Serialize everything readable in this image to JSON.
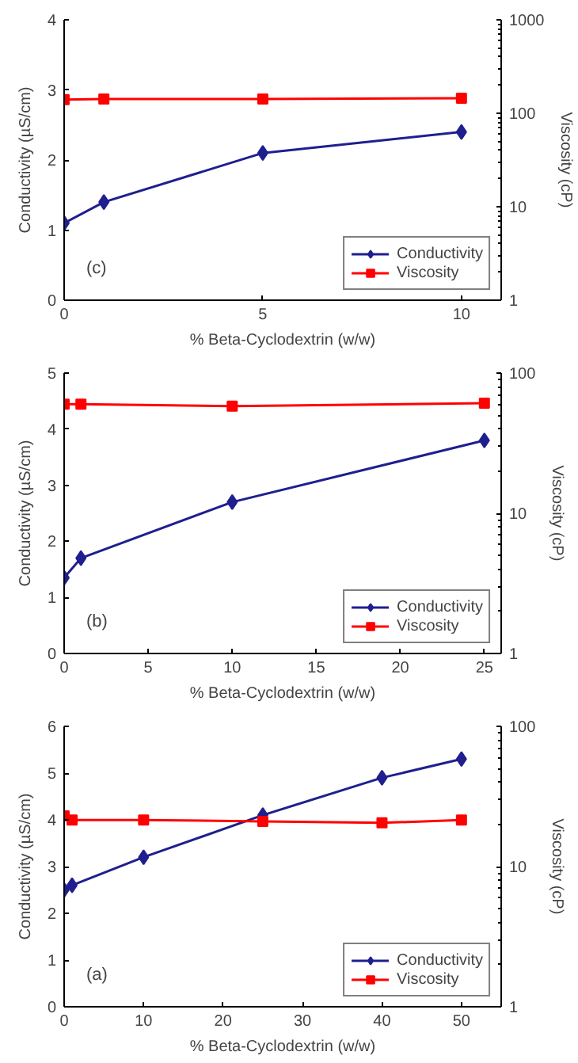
{
  "chart_data": [
    {
      "type": "line",
      "xlabel": "% Beta-Cyclodextrin (w/w)",
      "ylabel": "Conductivity (µS/cm)",
      "y2label": "Viscosity (cP)",
      "annotations": [
        "(c)"
      ],
      "x": [
        0,
        1,
        5,
        10
      ],
      "xlim": [
        0,
        11
      ],
      "xticks": [
        0,
        5,
        10
      ],
      "ylim": [
        0,
        4
      ],
      "yticks": [
        0,
        1,
        2,
        3,
        4
      ],
      "y2lim": [
        1,
        1000
      ],
      "y2ticks": [
        1,
        10,
        100,
        1000
      ],
      "log": "y2",
      "grid": false,
      "legend": "bottom right",
      "line_style": "solid",
      "series": [
        {
          "name": "Conductivity",
          "color": "#1f1f8f",
          "marker": "diamond",
          "values": [
            1.1,
            1.4,
            2.1,
            2.4
          ]
        },
        {
          "name": "Viscosity",
          "color": "#ff0000",
          "marker": "square",
          "axis": "y2",
          "values": [
            140,
            142,
            142,
            145
          ]
        }
      ]
    },
    {
      "type": "line",
      "xlabel": "% Beta-Cyclodextrin (w/w)",
      "ylabel": "Conductivity (µS/cm)",
      "y2label": "Viscosity (cP)",
      "annotations": [
        "(b)"
      ],
      "x": [
        0,
        1,
        10,
        25
      ],
      "xlim": [
        0,
        26
      ],
      "xticks": [
        0,
        5,
        10,
        15,
        20,
        25
      ],
      "ylim": [
        0,
        5
      ],
      "yticks": [
        0,
        1,
        2,
        3,
        4,
        5
      ],
      "y2lim": [
        1,
        100
      ],
      "y2ticks": [
        1,
        10,
        100
      ],
      "log": "y2",
      "grid": false,
      "legend": "bottom right",
      "line_style": "solid",
      "series": [
        {
          "name": "Conductivity",
          "color": "#1f1f8f",
          "marker": "diamond",
          "values": [
            1.35,
            1.7,
            2.7,
            3.8
          ]
        },
        {
          "name": "Viscosity",
          "color": "#ff0000",
          "marker": "square",
          "axis": "y2",
          "values": [
            60,
            60,
            58,
            61
          ]
        }
      ]
    },
    {
      "type": "line",
      "xlabel": "% Beta-Cyclodextrin (w/w)",
      "ylabel": "Conductivity (µS/cm)",
      "y2label": "Viscosity (cP)",
      "annotations": [
        "(a)"
      ],
      "x": [
        0,
        1,
        10,
        25,
        40,
        50
      ],
      "xlim": [
        0,
        55
      ],
      "xticks": [
        0,
        10,
        20,
        30,
        40,
        50
      ],
      "ylim": [
        0,
        6
      ],
      "yticks": [
        0,
        1,
        2,
        3,
        4,
        5,
        6
      ],
      "y2lim": [
        1,
        100
      ],
      "y2ticks": [
        1,
        10,
        100
      ],
      "log": "y2",
      "grid": false,
      "legend": "bottom right",
      "line_style": "solid",
      "series": [
        {
          "name": "Conductivity",
          "color": "#1f1f8f",
          "marker": "diamond",
          "values": [
            2.5,
            2.6,
            3.2,
            4.1,
            4.9,
            5.3
          ]
        },
        {
          "name": "Viscosity",
          "color": "#ff0000",
          "marker": "square",
          "axis": "y2",
          "values": [
            23,
            21.5,
            21.5,
            21,
            20.5,
            21.5
          ]
        }
      ]
    }
  ]
}
